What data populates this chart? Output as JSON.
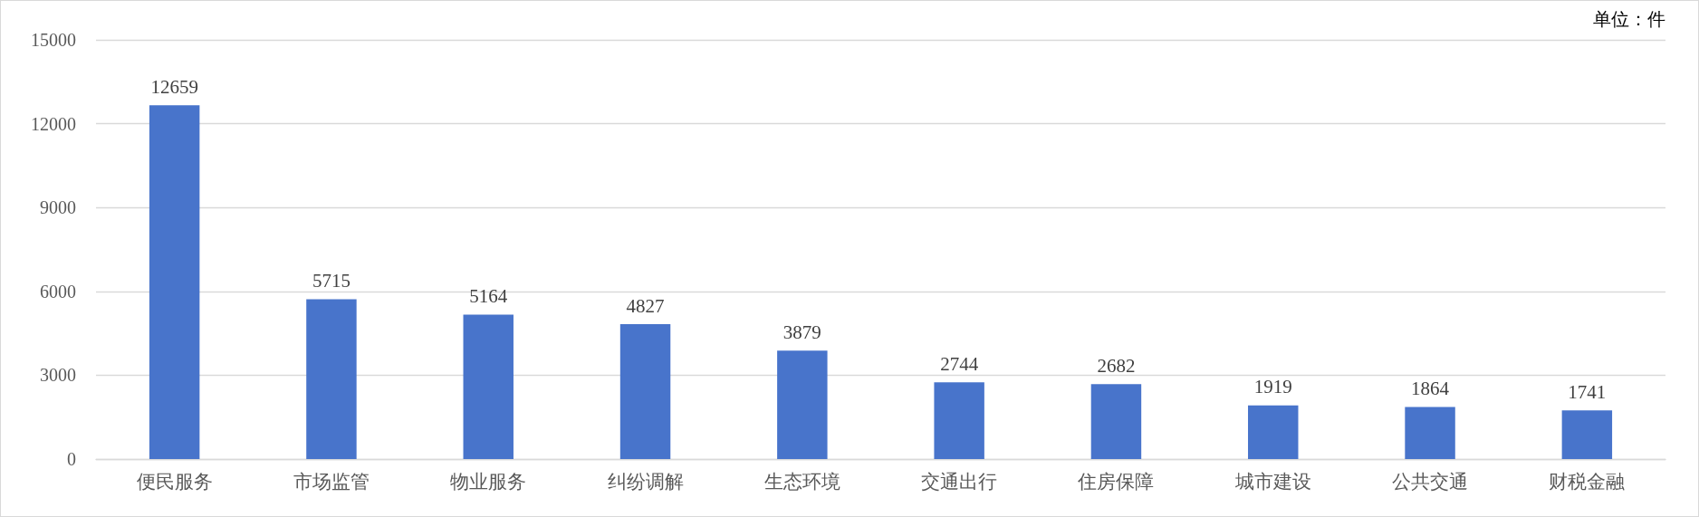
{
  "chart_data": {
    "type": "bar",
    "categories": [
      "便民服务",
      "市场监管",
      "物业服务",
      "纠纷调解",
      "生态环境",
      "交通出行",
      "住房保障",
      "城市建设",
      "公共交通",
      "财税金融"
    ],
    "values": [
      12659,
      5715,
      5164,
      4827,
      3879,
      2744,
      2682,
      1919,
      1864,
      1741
    ],
    "color": "#4874cb",
    "ylim": [
      0,
      15000
    ],
    "yticks": [
      0,
      3000,
      6000,
      9000,
      12000,
      15000
    ],
    "grid": "y",
    "data_labels": true,
    "annotations": [
      "单位：件"
    ]
  }
}
